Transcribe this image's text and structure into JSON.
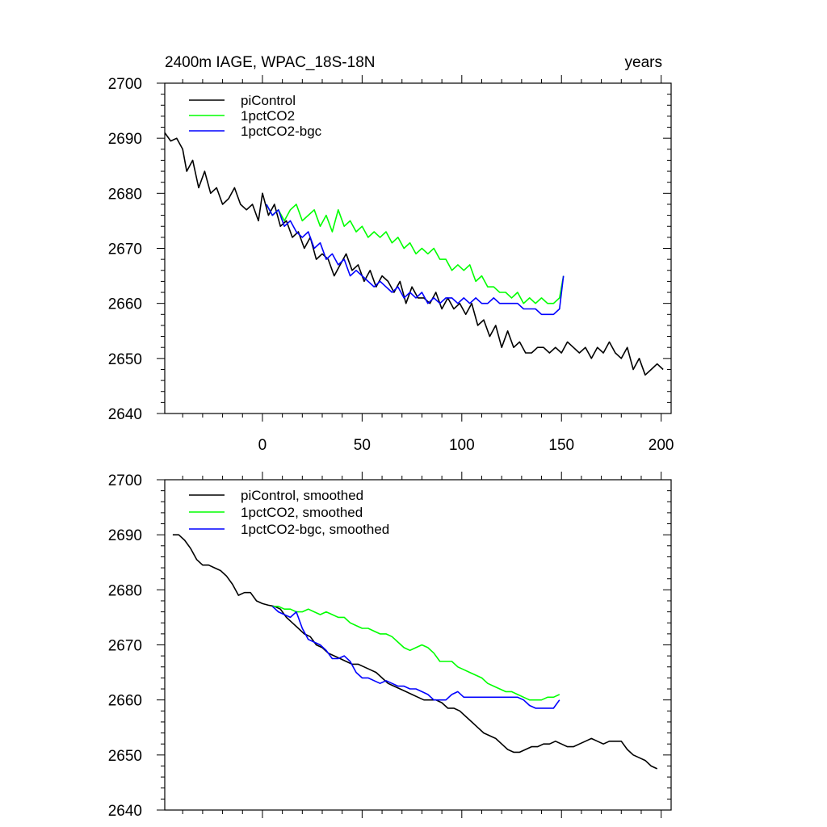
{
  "chart_data": [
    {
      "type": "line",
      "title_left": "2400m IAGE, WPAC_18S-18N",
      "title_right": "years",
      "xlim": [
        -49,
        205
      ],
      "ylim": [
        2640,
        2700
      ],
      "xticks": [
        0,
        50,
        100,
        150,
        200
      ],
      "xtick_labels": [
        "0",
        "50",
        "100",
        "150",
        "200"
      ],
      "yticks": [
        2640,
        2650,
        2660,
        2670,
        2680,
        2690,
        2700
      ],
      "ytick_labels": [
        "2640",
        "2650",
        "2660",
        "2670",
        "2680",
        "2690",
        "2700"
      ],
      "legend_position": "top-left",
      "series": [
        {
          "name": "piControl",
          "color": "#000000",
          "x": [
            -49,
            -46,
            -43,
            -40,
            -38,
            -35,
            -32,
            -29,
            -26,
            -23,
            -20,
            -17,
            -14,
            -11,
            -8,
            -5,
            -2,
            0,
            3,
            6,
            9,
            12,
            15,
            18,
            21,
            24,
            27,
            30,
            33,
            36,
            39,
            42,
            45,
            48,
            51,
            54,
            57,
            60,
            63,
            66,
            69,
            72,
            75,
            78,
            81,
            84,
            87,
            90,
            93,
            96,
            99,
            102,
            105,
            108,
            111,
            114,
            117,
            120,
            123,
            126,
            129,
            132,
            135,
            138,
            141,
            144,
            147,
            150,
            153,
            156,
            159,
            162,
            165,
            168,
            171,
            174,
            177,
            180,
            183,
            186,
            189,
            192,
            195,
            198,
            201
          ],
          "values": [
            2691,
            2689.5,
            2690,
            2688,
            2684,
            2686,
            2681,
            2684,
            2680,
            2681,
            2678,
            2679,
            2681,
            2678,
            2677,
            2678,
            2675,
            2680,
            2676,
            2678,
            2674,
            2675,
            2672,
            2673,
            2670,
            2672,
            2668,
            2669,
            2668,
            2665,
            2667,
            2669,
            2666,
            2667,
            2664,
            2666,
            2663,
            2665,
            2664,
            2662,
            2664,
            2660,
            2663,
            2661,
            2661,
            2660,
            2662,
            2659,
            2661,
            2659,
            2660,
            2658,
            2660,
            2656,
            2657,
            2654,
            2656,
            2652,
            2655,
            2652,
            2653,
            2651,
            2651,
            2652,
            2652,
            2651,
            2652,
            2651,
            2653,
            2652,
            2651,
            2652,
            2650,
            2652,
            2651,
            2653,
            2651,
            2650,
            2652,
            2648,
            2650,
            2647,
            2648,
            2649,
            2648
          ]
        },
        {
          "name": "1pctCO2",
          "color": "#00ff00",
          "x": [
            2,
            5,
            8,
            11,
            14,
            17,
            20,
            23,
            26,
            29,
            32,
            35,
            38,
            41,
            44,
            47,
            50,
            53,
            56,
            59,
            62,
            65,
            68,
            71,
            74,
            77,
            80,
            83,
            86,
            89,
            92,
            95,
            98,
            101,
            104,
            107,
            110,
            113,
            116,
            119,
            122,
            125,
            128,
            131,
            134,
            137,
            140,
            143,
            146,
            149,
            151
          ],
          "values": [
            2678,
            2676,
            2677,
            2675,
            2677,
            2678,
            2675,
            2676,
            2677,
            2674,
            2676,
            2673,
            2677,
            2674,
            2675,
            2673,
            2674,
            2672,
            2673,
            2672,
            2673,
            2671,
            2672,
            2670,
            2671,
            2669,
            2670,
            2669,
            2670,
            2668,
            2668,
            2666,
            2667,
            2666,
            2667,
            2664,
            2665,
            2663,
            2663,
            2662,
            2662,
            2661,
            2662,
            2660,
            2661,
            2660,
            2661,
            2660,
            2660,
            2661,
            2665
          ]
        },
        {
          "name": "1pctCO2-bgc",
          "color": "#0000ff",
          "x": [
            2,
            5,
            8,
            11,
            14,
            17,
            20,
            23,
            26,
            29,
            32,
            35,
            38,
            41,
            44,
            47,
            50,
            53,
            56,
            59,
            62,
            65,
            68,
            71,
            74,
            77,
            80,
            83,
            86,
            89,
            92,
            95,
            98,
            101,
            104,
            107,
            110,
            113,
            116,
            119,
            122,
            125,
            128,
            131,
            134,
            137,
            140,
            143,
            146,
            149,
            151
          ],
          "values": [
            2678,
            2676,
            2677,
            2674,
            2675,
            2673,
            2672,
            2673,
            2670,
            2671,
            2668,
            2669,
            2667,
            2668,
            2665,
            2666,
            2665,
            2664,
            2663,
            2664,
            2663,
            2662,
            2663,
            2661,
            2662,
            2661,
            2662,
            2660,
            2661,
            2660,
            2661,
            2661,
            2660,
            2661,
            2660,
            2661,
            2660,
            2660,
            2661,
            2660,
            2660,
            2660,
            2660,
            2659,
            2659,
            2659,
            2658,
            2658,
            2658,
            2659,
            2665
          ]
        }
      ]
    },
    {
      "type": "line",
      "xlim": [
        -49,
        205
      ],
      "ylim": [
        2640,
        2700
      ],
      "xticks": [
        0,
        50,
        100,
        150,
        200
      ],
      "yticks": [
        2640,
        2650,
        2660,
        2670,
        2680,
        2690,
        2700
      ],
      "ytick_labels": [
        "2640",
        "2650",
        "2660",
        "2670",
        "2680",
        "2690",
        "2700"
      ],
      "legend_position": "top-left",
      "series": [
        {
          "name": "piControl, smoothed",
          "color": "#000000",
          "x": [
            -45,
            -42,
            -39,
            -36,
            -33,
            -30,
            -27,
            -24,
            -21,
            -18,
            -15,
            -12,
            -9,
            -6,
            -3,
            0,
            3,
            6,
            9,
            12,
            15,
            18,
            21,
            24,
            27,
            30,
            33,
            36,
            39,
            42,
            45,
            48,
            51,
            54,
            57,
            60,
            63,
            66,
            69,
            72,
            75,
            78,
            81,
            84,
            87,
            90,
            93,
            96,
            99,
            102,
            105,
            108,
            111,
            114,
            117,
            120,
            123,
            126,
            129,
            132,
            135,
            138,
            141,
            144,
            147,
            150,
            153,
            156,
            159,
            162,
            165,
            168,
            171,
            174,
            177,
            180,
            183,
            186,
            189,
            192,
            195,
            198
          ],
          "values": [
            2690,
            2690,
            2689,
            2687.5,
            2685.5,
            2684.5,
            2684.5,
            2684,
            2683.5,
            2682.5,
            2681,
            2679,
            2679.5,
            2679.5,
            2678,
            2677.5,
            2677.2,
            2677,
            2676.5,
            2675,
            2674,
            2673,
            2672,
            2671.5,
            2670,
            2669.5,
            2668.5,
            2668,
            2667.5,
            2667,
            2666.5,
            2666.5,
            2666,
            2665.5,
            2665,
            2664,
            2663,
            2662.5,
            2662,
            2661.5,
            2661,
            2660.5,
            2660,
            2660,
            2660,
            2659.5,
            2658.5,
            2658.5,
            2658,
            2657,
            2656,
            2655,
            2654,
            2653.5,
            2653,
            2652,
            2651,
            2650.5,
            2650.5,
            2651,
            2651.5,
            2651.5,
            2652,
            2652,
            2652.5,
            2652,
            2651.5,
            2651.5,
            2652,
            2652.5,
            2653,
            2652.5,
            2652,
            2652.5,
            2652.5,
            2652.5,
            2651,
            2650,
            2649.5,
            2649,
            2648,
            2647.5
          ]
        },
        {
          "name": "1pctCO2, smoothed",
          "color": "#00ff00",
          "x": [
            5,
            8,
            11,
            14,
            17,
            20,
            23,
            26,
            29,
            32,
            35,
            38,
            41,
            44,
            47,
            50,
            53,
            56,
            59,
            62,
            65,
            68,
            71,
            74,
            77,
            80,
            83,
            86,
            89,
            92,
            95,
            98,
            101,
            104,
            107,
            110,
            113,
            116,
            119,
            122,
            125,
            128,
            131,
            134,
            137,
            140,
            143,
            146,
            149
          ],
          "values": [
            2677,
            2677,
            2676.5,
            2676.5,
            2676,
            2676,
            2676.5,
            2676,
            2675.5,
            2676,
            2675.5,
            2675,
            2675,
            2674,
            2673.5,
            2673,
            2673,
            2672.5,
            2672,
            2672,
            2671.5,
            2670.5,
            2669.5,
            2669,
            2669.5,
            2670,
            2669.5,
            2668.5,
            2667,
            2667,
            2667,
            2666,
            2665.5,
            2665,
            2664.5,
            2664,
            2663,
            2662.5,
            2662,
            2661.5,
            2661.5,
            2661,
            2660.5,
            2660,
            2660,
            2660,
            2660.5,
            2660.5,
            2661
          ]
        },
        {
          "name": "1pctCO2-bgc, smoothed",
          "color": "#0000ff",
          "x": [
            5,
            8,
            11,
            14,
            17,
            20,
            23,
            26,
            29,
            32,
            35,
            38,
            41,
            44,
            47,
            50,
            53,
            56,
            59,
            62,
            65,
            68,
            71,
            74,
            77,
            80,
            83,
            86,
            89,
            92,
            95,
            98,
            101,
            104,
            107,
            110,
            113,
            116,
            119,
            122,
            125,
            128,
            131,
            134,
            137,
            140,
            143,
            146,
            149
          ],
          "values": [
            2677,
            2676,
            2675.5,
            2675,
            2676,
            2673,
            2671,
            2670.5,
            2670,
            2669,
            2667.5,
            2667.5,
            2668,
            2667,
            2665,
            2664,
            2664,
            2663.5,
            2663,
            2663.5,
            2663,
            2662.5,
            2662.5,
            2662,
            2662,
            2661.5,
            2661,
            2660,
            2660,
            2660,
            2661,
            2661.5,
            2660.5,
            2660.5,
            2660.5,
            2660.5,
            2660.5,
            2660.5,
            2660.5,
            2660.5,
            2660.5,
            2660.5,
            2660,
            2659,
            2658.5,
            2658.5,
            2658.5,
            2658.5,
            2660
          ]
        }
      ]
    }
  ]
}
